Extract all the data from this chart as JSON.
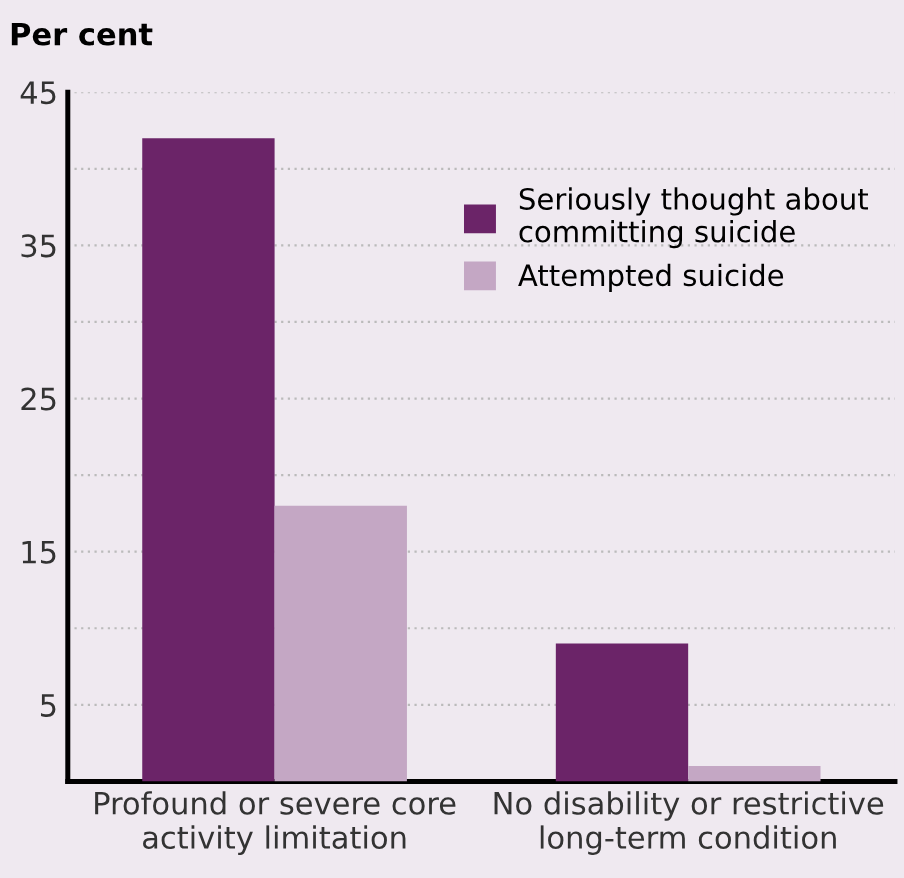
{
  "chart_data": {
    "type": "bar",
    "ylabel": "Per cent",
    "categories": [
      "Profound or severe core activity limitation",
      "No disability or restrictive long-term condition"
    ],
    "series": [
      {
        "name": "Seriously thought about committing suicide",
        "color": "#6b2468",
        "values": [
          42,
          9
        ]
      },
      {
        "name": "Attempted suicide",
        "color": "#c4a7c4",
        "values": [
          18,
          1
        ]
      }
    ],
    "ylim": [
      0,
      45
    ],
    "yticks": [
      5,
      {
        "value": 10,
        "label": null
      },
      15,
      {
        "value": 20,
        "label": null
      },
      25,
      {
        "value": 30,
        "label": null
      },
      35,
      {
        "value": 40,
        "label": null
      },
      45
    ],
    "grid": "y",
    "legend": "top right"
  }
}
